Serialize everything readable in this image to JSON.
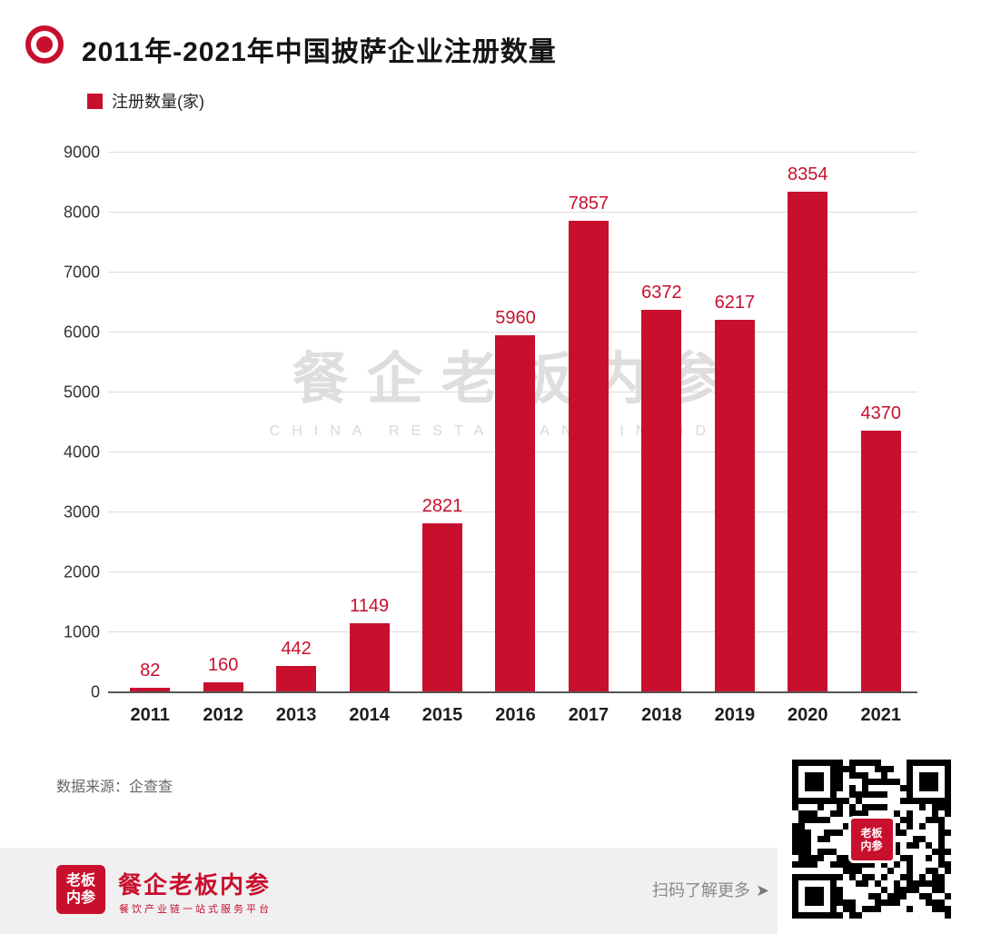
{
  "header": {
    "title": "2011年-2021年中国披萨企业注册数量"
  },
  "legend": {
    "label": "注册数量(家)",
    "color": "#C8102E"
  },
  "chart_data": {
    "type": "bar",
    "title": "2011年-2021年中国披萨企业注册数量",
    "categories": [
      "2011",
      "2012",
      "2013",
      "2014",
      "2015",
      "2016",
      "2017",
      "2018",
      "2019",
      "2020",
      "2021"
    ],
    "values": [
      82,
      160,
      442,
      1149,
      2821,
      5960,
      7857,
      6372,
      6217,
      8354,
      4370
    ],
    "series_name": "注册数量(家)",
    "xlabel": "",
    "ylabel": "",
    "ylim": [
      0,
      9000
    ],
    "yticks": [
      0,
      1000,
      2000,
      3000,
      4000,
      5000,
      6000,
      7000,
      8000,
      9000
    ],
    "grid": true,
    "legend_position": "top-left",
    "bar_color": "#C8102E",
    "label_color": "#C8102E"
  },
  "watermark": {
    "line1": "餐企老板内参",
    "line2": "CHINA RESTAURANT INSIDER"
  },
  "source": {
    "text": "数据来源：企查查"
  },
  "footer": {
    "logo_text": "老板内参",
    "brand": "餐企老板内参",
    "tagline": "餐饮产业链一站式服务平台",
    "scan_text": "扫码了解更多",
    "arrow": "➤",
    "qr_center_text": "老板内参"
  },
  "colors": {
    "brand_red": "#C8102E"
  }
}
